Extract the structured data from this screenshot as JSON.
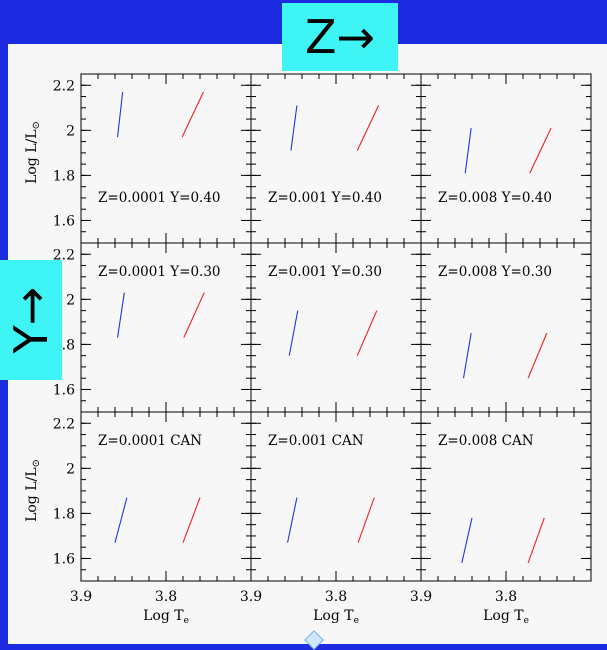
{
  "labels": {
    "z_arrow": "Z→",
    "y_arrow": "Y→"
  },
  "colors": {
    "background": "#1c2be0",
    "tag": "#3ff4f4",
    "blue_line": "#2233ee",
    "red_line": "#ee2222"
  },
  "chart_data": {
    "type": "line",
    "layout": "3x3 grid of panels",
    "xlabel": "Log T",
    "xlabel_sub": "e",
    "ylabel": "Log L/L",
    "ylabel_sym": "⊙",
    "xlim": [
      3.9,
      3.7
    ],
    "ylim": [
      1.5,
      2.25
    ],
    "x_tick_labels": [
      "3.9",
      "3.8"
    ],
    "y_tick_labels": [
      "1.6",
      "1.8",
      "2",
      "2.2"
    ],
    "panels": [
      {
        "label": "Z=0.0001  Y=0.40",
        "blue": [
          [
            3.857,
            1.97
          ],
          [
            3.851,
            2.17
          ]
        ],
        "red": [
          [
            3.781,
            1.97
          ],
          [
            3.756,
            2.17
          ]
        ]
      },
      {
        "label": "Z=0.001  Y=0.40",
        "blue": [
          [
            3.853,
            1.91
          ],
          [
            3.846,
            2.11
          ]
        ],
        "red": [
          [
            3.775,
            1.91
          ],
          [
            3.75,
            2.11
          ]
        ]
      },
      {
        "label": "Z=0.008  Y=0.40",
        "blue": [
          [
            3.848,
            1.81
          ],
          [
            3.841,
            2.01
          ]
        ],
        "red": [
          [
            3.772,
            1.81
          ],
          [
            3.747,
            2.01
          ]
        ]
      },
      {
        "label": "Z=0.0001  Y=0.30",
        "blue": [
          [
            3.857,
            1.83
          ],
          [
            3.849,
            2.03
          ]
        ],
        "red": [
          [
            3.779,
            1.83
          ],
          [
            3.755,
            2.03
          ]
        ]
      },
      {
        "label": "Z=0.001  Y=0.30",
        "blue": [
          [
            3.855,
            1.75
          ],
          [
            3.845,
            1.95
          ]
        ],
        "red": [
          [
            3.775,
            1.75
          ],
          [
            3.752,
            1.95
          ]
        ]
      },
      {
        "label": "Z=0.008  Y=0.30",
        "blue": [
          [
            3.85,
            1.65
          ],
          [
            3.841,
            1.85
          ]
        ],
        "red": [
          [
            3.774,
            1.65
          ],
          [
            3.752,
            1.85
          ]
        ]
      },
      {
        "label": "Z=0.0001  CAN",
        "blue": [
          [
            3.86,
            1.67
          ],
          [
            3.846,
            1.87
          ]
        ],
        "red": [
          [
            3.78,
            1.67
          ],
          [
            3.76,
            1.87
          ]
        ]
      },
      {
        "label": "Z=0.001  CAN",
        "blue": [
          [
            3.857,
            1.67
          ],
          [
            3.846,
            1.87
          ]
        ],
        "red": [
          [
            3.774,
            1.67
          ],
          [
            3.755,
            1.87
          ]
        ]
      },
      {
        "label": "Z=0.008  CAN",
        "blue": [
          [
            3.852,
            1.58
          ],
          [
            3.84,
            1.78
          ]
        ],
        "red": [
          [
            3.774,
            1.58
          ],
          [
            3.755,
            1.78
          ]
        ]
      }
    ]
  }
}
